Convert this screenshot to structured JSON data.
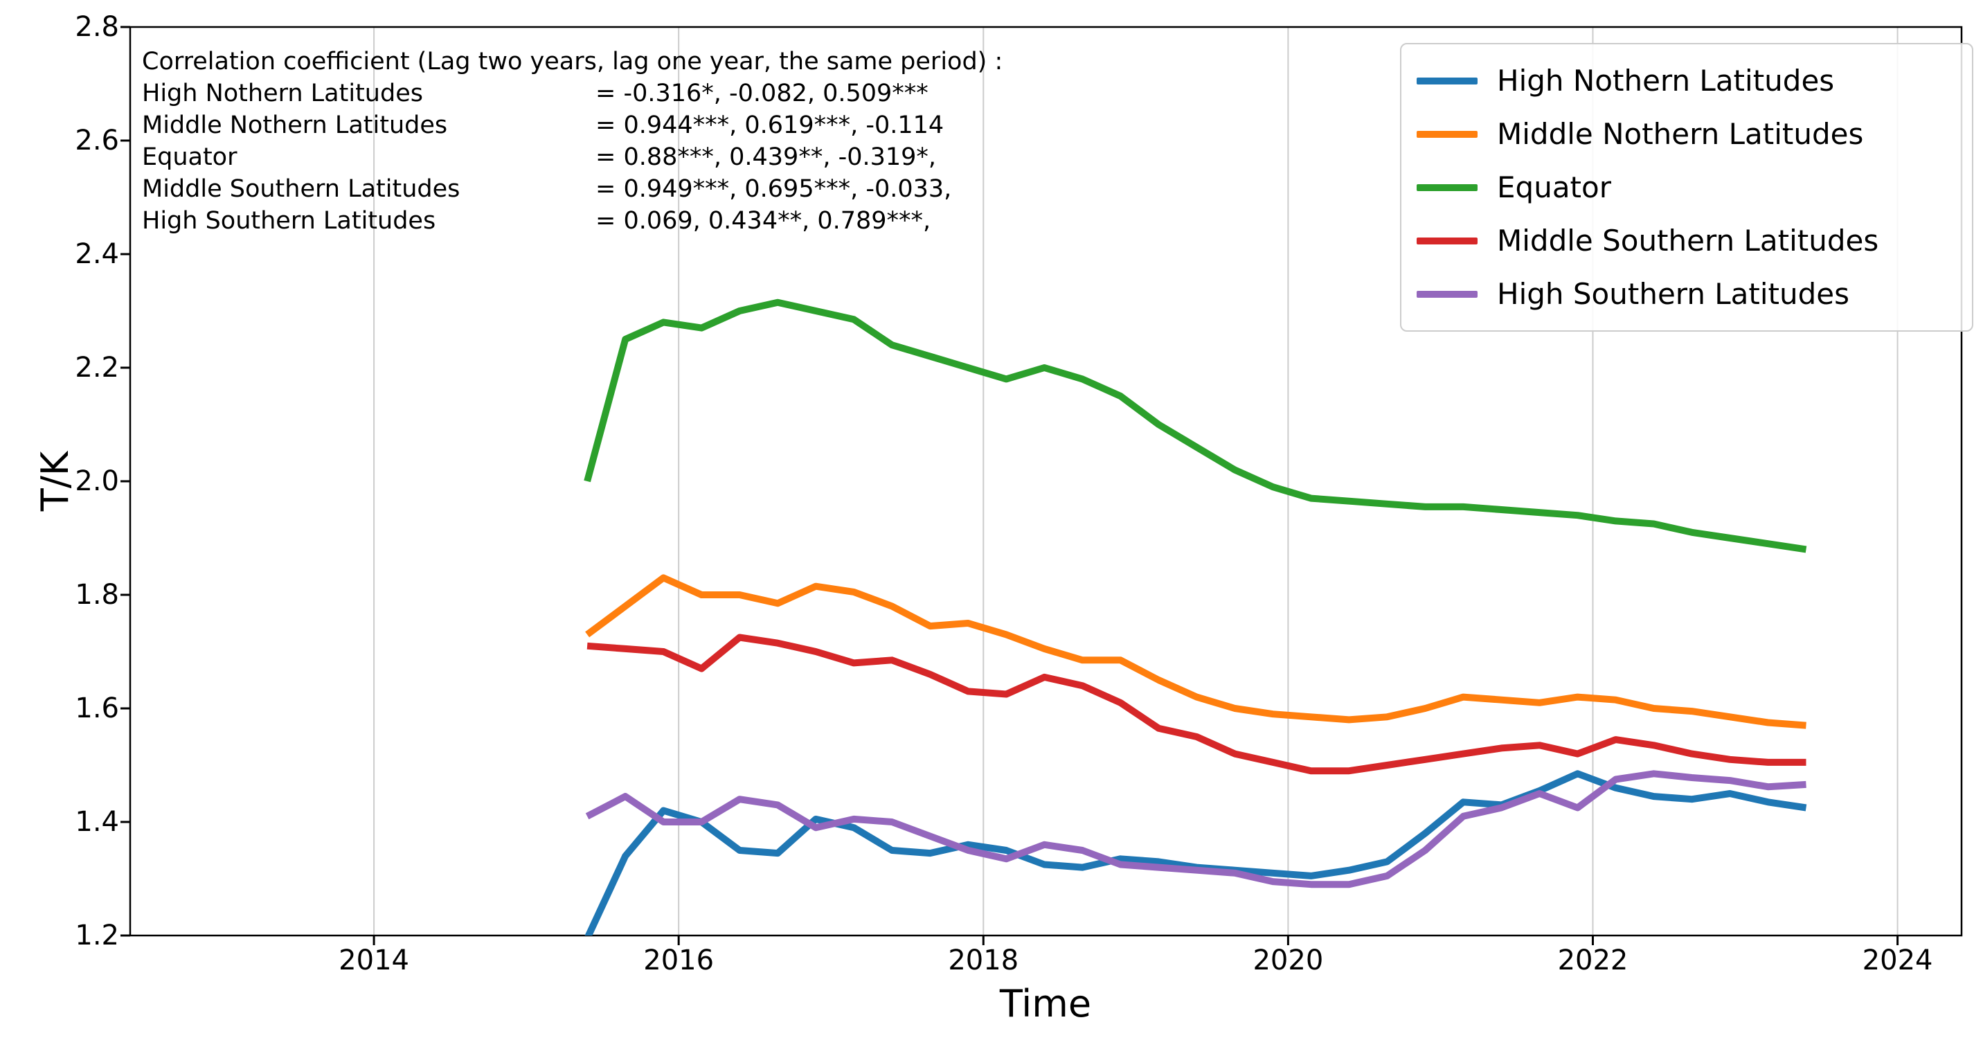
{
  "figure": {
    "background": "#ffffff",
    "grid_color": "#cccccc",
    "spine_color": "#000000"
  },
  "annotation": {
    "header": "Correlation coefficient (Lag two years, lag one year, the same period) :",
    "rows": [
      {
        "label": "High Nothern Latitudes",
        "value": "= -0.316*, -0.082, 0.509***"
      },
      {
        "label": "Middle Nothern Latitudes",
        "value": "= 0.944***, 0.619***, -0.114"
      },
      {
        "label": "Equator",
        "value": "= 0.88***, 0.439**, -0.319*,"
      },
      {
        "label": "Middle Southern Latitudes",
        "value": "= 0.949***, 0.695***, -0.033,"
      },
      {
        "label": "High Southern Latitudes",
        "value": "= 0.069, 0.434**, 0.789***,"
      }
    ]
  },
  "legend": {
    "position": "upper-right",
    "entries": [
      {
        "label": "High Nothern Latitudes",
        "color": "#1f77b4"
      },
      {
        "label": "Middle Nothern Latitudes",
        "color": "#ff7f0e"
      },
      {
        "label": "Equator",
        "color": "#2ca02c"
      },
      {
        "label": "Middle Southern Latitudes",
        "color": "#d62728"
      },
      {
        "label": "High Southern Latitudes",
        "color": "#9467bd"
      }
    ]
  },
  "chart_data": {
    "type": "line",
    "title": "",
    "xlabel": "Time",
    "ylabel": "T/K",
    "xlim": [
      2012.4,
      2024.42
    ],
    "ylim": [
      1.2,
      2.8
    ],
    "xticks": [
      2014,
      2016,
      2018,
      2020,
      2022,
      2024
    ],
    "yticks": [
      1.2,
      1.4,
      1.6,
      1.8,
      2.0,
      2.2,
      2.4,
      2.6,
      2.8
    ],
    "grid": "vertical-only",
    "line_width": 10,
    "x": [
      2015.4,
      2015.65,
      2015.9,
      2016.15,
      2016.4,
      2016.65,
      2016.9,
      2017.15,
      2017.4,
      2017.65,
      2017.9,
      2018.15,
      2018.4,
      2018.65,
      2018.9,
      2019.15,
      2019.4,
      2019.65,
      2019.9,
      2020.15,
      2020.4,
      2020.65,
      2020.9,
      2021.15,
      2021.4,
      2021.65,
      2021.9,
      2022.15,
      2022.4,
      2022.65,
      2022.9,
      2023.15,
      2023.4
    ],
    "series": [
      {
        "name": "High Nothern Latitudes",
        "color": "#1f77b4",
        "values": [
          1.195,
          1.34,
          1.42,
          1.4,
          1.35,
          1.345,
          1.405,
          1.39,
          1.35,
          1.345,
          1.36,
          1.35,
          1.325,
          1.32,
          1.335,
          1.33,
          1.32,
          1.315,
          1.31,
          1.305,
          1.315,
          1.33,
          1.38,
          1.435,
          1.43,
          1.455,
          1.485,
          1.46,
          1.445,
          1.44,
          1.45,
          1.435,
          1.425
        ]
      },
      {
        "name": "Middle Nothern Latitudes",
        "color": "#ff7f0e",
        "values": [
          1.73,
          1.78,
          1.83,
          1.8,
          1.8,
          1.785,
          1.815,
          1.805,
          1.78,
          1.745,
          1.75,
          1.73,
          1.705,
          1.685,
          1.685,
          1.65,
          1.62,
          1.6,
          1.59,
          1.585,
          1.58,
          1.585,
          1.6,
          1.62,
          1.615,
          1.61,
          1.62,
          1.615,
          1.6,
          1.595,
          1.585,
          1.575,
          1.57
        ]
      },
      {
        "name": "Equator",
        "color": "#2ca02c",
        "values": [
          2.0,
          2.25,
          2.28,
          2.27,
          2.3,
          2.315,
          2.3,
          2.285,
          2.24,
          2.22,
          2.2,
          2.18,
          2.2,
          2.18,
          2.15,
          2.1,
          2.06,
          2.02,
          1.99,
          1.97,
          1.965,
          1.96,
          1.955,
          1.955,
          1.95,
          1.945,
          1.94,
          1.93,
          1.925,
          1.91,
          1.9,
          1.89,
          1.88
        ]
      },
      {
        "name": "Middle Southern Latitudes",
        "color": "#d62728",
        "values": [
          1.71,
          1.705,
          1.7,
          1.67,
          1.725,
          1.715,
          1.7,
          1.68,
          1.685,
          1.66,
          1.63,
          1.625,
          1.655,
          1.64,
          1.61,
          1.565,
          1.55,
          1.52,
          1.505,
          1.49,
          1.49,
          1.5,
          1.51,
          1.52,
          1.53,
          1.535,
          1.52,
          1.545,
          1.535,
          1.52,
          1.51,
          1.505,
          1.505
        ]
      },
      {
        "name": "High Southern Latitudes",
        "color": "#9467bd",
        "values": [
          1.41,
          1.445,
          1.4,
          1.4,
          1.44,
          1.43,
          1.39,
          1.405,
          1.4,
          1.375,
          1.35,
          1.335,
          1.36,
          1.35,
          1.325,
          1.32,
          1.315,
          1.31,
          1.295,
          1.29,
          1.29,
          1.305,
          1.35,
          1.41,
          1.425,
          1.45,
          1.425,
          1.475,
          1.485,
          1.478,
          1.473,
          1.462,
          1.466
        ]
      }
    ]
  }
}
